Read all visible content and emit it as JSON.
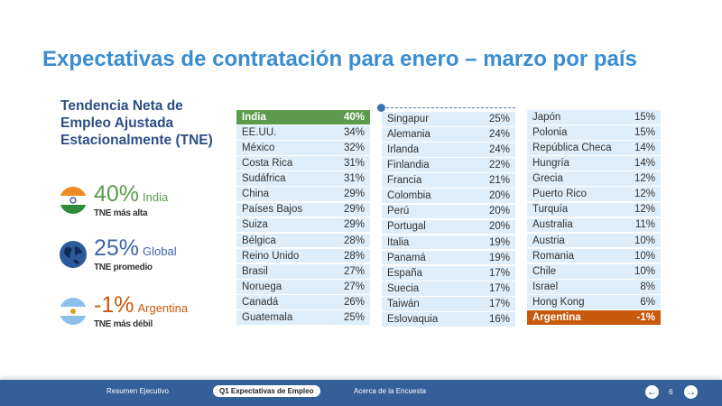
{
  "title": "Expectativas de contratación para enero – marzo por país",
  "subtitle": "Tendencia Neta de Empleo Ajustada Estacionalmente (TNE)",
  "stats": [
    {
      "value": "40%",
      "country": "India",
      "label": "TNE más alta",
      "color": "#5c9a4d",
      "icon": "india-flag-icon"
    },
    {
      "value": "25%",
      "country": "Global",
      "label": "TNE promedio",
      "color": "#3f65a8",
      "icon": "globe-icon"
    },
    {
      "value": "-1%",
      "country": "Argentina",
      "label": "TNE más débil",
      "color": "#c8590d",
      "icon": "argentina-flag-icon"
    }
  ],
  "columns": [
    [
      [
        "India",
        "40%"
      ],
      [
        "EE.UU.",
        "34%"
      ],
      [
        "México",
        "32%"
      ],
      [
        "Costa Rica",
        "31%"
      ],
      [
        "Sudáfrica",
        "31%"
      ],
      [
        "China",
        "29%"
      ],
      [
        "Países Bajos",
        "29%"
      ],
      [
        "Suiza",
        "29%"
      ],
      [
        "Bélgica",
        "28%"
      ],
      [
        "Reino Unido",
        "28%"
      ],
      [
        "Brasil",
        "27%"
      ],
      [
        "Noruega",
        "27%"
      ],
      [
        "Canadá",
        "26%"
      ],
      [
        "Guatemala",
        "25%"
      ]
    ],
    [
      [
        "Singapur",
        "25%"
      ],
      [
        "Alemania",
        "24%"
      ],
      [
        "Irlanda",
        "24%"
      ],
      [
        "Finlandia",
        "22%"
      ],
      [
        "Francia",
        "21%"
      ],
      [
        "Colombia",
        "20%"
      ],
      [
        "Perú",
        "20%"
      ],
      [
        "Portugal",
        "20%"
      ],
      [
        "Italia",
        "19%"
      ],
      [
        "Panamá",
        "19%"
      ],
      [
        "España",
        "17%"
      ],
      [
        "Suecia",
        "17%"
      ],
      [
        "Taiwán",
        "17%"
      ],
      [
        "Eslovaquia",
        "16%"
      ]
    ],
    [
      [
        "Japón",
        "15%"
      ],
      [
        "Polonia",
        "15%"
      ],
      [
        "República Checa",
        "14%"
      ],
      [
        "Hungría",
        "14%"
      ],
      [
        "Grecia",
        "12%"
      ],
      [
        "Puerto Rico",
        "12%"
      ],
      [
        "Turquía",
        "12%"
      ],
      [
        "Australia",
        "11%"
      ],
      [
        "Austria",
        "10%"
      ],
      [
        "Romania",
        "10%"
      ],
      [
        "Chile",
        "10%"
      ],
      [
        "Israel",
        "8%"
      ],
      [
        "Hong Kong",
        "6%"
      ],
      [
        "Argentina",
        "-1%"
      ]
    ]
  ],
  "highlight": {
    "highest": "India",
    "lowest": "Argentina"
  },
  "footer": {
    "nav": [
      "Resumen Ejecutivo",
      "Q1 Expectativas de Empleo",
      "Acerca de la Encuesta"
    ],
    "active": 1,
    "page": "6",
    "prev_icon": "arrow-left-icon",
    "next_icon": "arrow-right-icon"
  }
}
